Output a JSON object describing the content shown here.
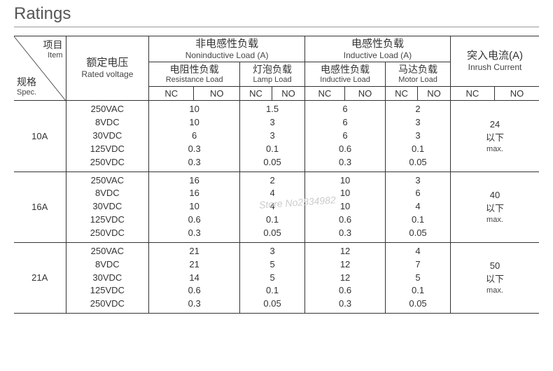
{
  "title": "Ratings",
  "headers": {
    "item_cn": "项目",
    "item_en": "Item",
    "spec_cn": "规格",
    "spec_en": "Spec.",
    "rated_voltage_cn": "额定电压",
    "rated_voltage_en": "Rated voltage",
    "noninductive_cn": "非电感性负载",
    "noninductive_en": "Noninductive Load (A)",
    "inductive_cn": "电感性负载",
    "inductive_en": "Inductive Load (A)",
    "inrush_cn": "突入电流(A)",
    "inrush_en": "Inrush Current",
    "resistance_cn": "电阻性负载",
    "resistance_en": "Resistance Load",
    "lamp_cn": "灯泡负载",
    "lamp_en": "Lamp Load",
    "inductive_sub_cn": "电感性负载",
    "inductive_sub_en": "Inductive Load",
    "motor_cn": "马达负载",
    "motor_en": "Motor Load",
    "nc": "NC",
    "no": "NO"
  },
  "voltages": [
    "250VAC",
    "8VDC",
    "30VDC",
    "125VDC",
    "250VDC"
  ],
  "groups": [
    {
      "spec": "10A",
      "resistance": [
        "10",
        "10",
        "6",
        "0.3",
        "0.3"
      ],
      "lamp": [
        "1.5",
        "3",
        "3",
        "0.1",
        "0.05"
      ],
      "inductive": [
        "6",
        "6",
        "6",
        "0.6",
        "0.3"
      ],
      "motor": [
        "2",
        "3",
        "3",
        "0.1",
        "0.05"
      ],
      "inrush_num": "24",
      "inrush_cn": "以下",
      "inrush_en": "max."
    },
    {
      "spec": "16A",
      "resistance": [
        "16",
        "16",
        "10",
        "0.6",
        "0.3"
      ],
      "lamp": [
        "2",
        "4",
        "4",
        "0.1",
        "0.05"
      ],
      "inductive": [
        "10",
        "10",
        "10",
        "0.6",
        "0.3"
      ],
      "motor": [
        "3",
        "6",
        "4",
        "0.1",
        "0.05"
      ],
      "inrush_num": "40",
      "inrush_cn": "以下",
      "inrush_en": "max."
    },
    {
      "spec": "21A",
      "resistance": [
        "21",
        "21",
        "14",
        "0.6",
        "0.3"
      ],
      "lamp": [
        "3",
        "5",
        "5",
        "0.1",
        "0.05"
      ],
      "inductive": [
        "12",
        "12",
        "12",
        "0.6",
        "0.3"
      ],
      "motor": [
        "4",
        "7",
        "5",
        "0.1",
        "0.05"
      ],
      "inrush_num": "50",
      "inrush_cn": "以下",
      "inrush_en": "max."
    }
  ],
  "watermark": "Store No2834982",
  "colors": {
    "text": "#333333",
    "border": "#333333",
    "title": "#555555",
    "background": "#ffffff",
    "watermark": "#cccccc"
  }
}
